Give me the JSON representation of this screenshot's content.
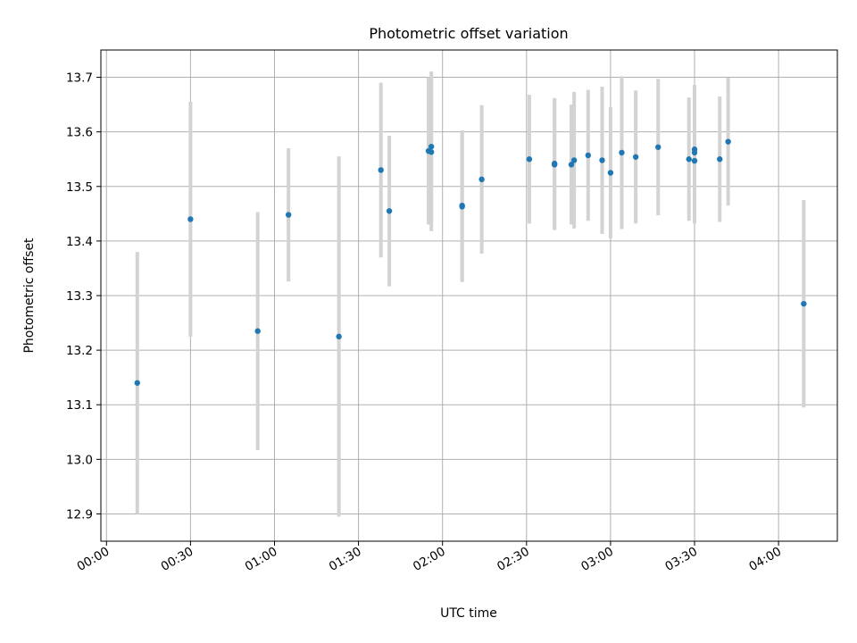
{
  "chart_data": {
    "type": "scatter",
    "title": "Photometric offset variation",
    "xlabel": "UTC time",
    "ylabel": "Photometric offset",
    "grid": true,
    "x_unit": "UTC time (HH:MM)",
    "xlim": [
      "23:58",
      "04:21"
    ],
    "ylim": [
      12.85,
      13.75
    ],
    "x_ticks": [
      "00:00",
      "00:30",
      "01:00",
      "01:30",
      "02:00",
      "02:30",
      "03:00",
      "03:30",
      "04:00"
    ],
    "y_ticks": [
      "12.9",
      "13.0",
      "13.1",
      "13.2",
      "13.3",
      "13.4",
      "13.5",
      "13.6",
      "13.7"
    ],
    "colors": {
      "points": "#1f77b4",
      "error_bars": "#d3d3d3",
      "grid": "#b0b0b0"
    },
    "series": [
      {
        "points": [
          {
            "x": "00:11",
            "y": 13.14,
            "err": 0.24
          },
          {
            "x": "00:30",
            "y": 13.44,
            "err": 0.215
          },
          {
            "x": "00:54",
            "y": 13.235,
            "err": 0.218
          },
          {
            "x": "01:05",
            "y": 13.448,
            "err": 0.122
          },
          {
            "x": "01:23",
            "y": 13.225,
            "err": 0.33
          },
          {
            "x": "01:38",
            "y": 13.53,
            "err": 0.16
          },
          {
            "x": "01:41",
            "y": 13.455,
            "err": 0.138
          },
          {
            "x": "01:55",
            "y": 13.565,
            "err": 0.135
          },
          {
            "x": "01:56",
            "y": 13.563,
            "err": 0.145
          },
          {
            "x": "01:56",
            "y": 13.573,
            "err": 0.138
          },
          {
            "x": "02:07",
            "y": 13.463,
            "err": 0.138
          },
          {
            "x": "02:07",
            "y": 13.465,
            "err": 0.138
          },
          {
            "x": "02:14",
            "y": 13.513,
            "err": 0.136
          },
          {
            "x": "02:31",
            "y": 13.55,
            "err": 0.118
          },
          {
            "x": "02:40",
            "y": 13.542,
            "err": 0.12
          },
          {
            "x": "02:40",
            "y": 13.54,
            "err": 0.12
          },
          {
            "x": "02:46",
            "y": 13.54,
            "err": 0.11
          },
          {
            "x": "02:47",
            "y": 13.548,
            "err": 0.125
          },
          {
            "x": "02:52",
            "y": 13.557,
            "err": 0.12
          },
          {
            "x": "02:57",
            "y": 13.548,
            "err": 0.135
          },
          {
            "x": "03:00",
            "y": 13.525,
            "err": 0.12
          },
          {
            "x": "03:04",
            "y": 13.562,
            "err": 0.14
          },
          {
            "x": "03:09",
            "y": 13.554,
            "err": 0.122
          },
          {
            "x": "03:17",
            "y": 13.572,
            "err": 0.125
          },
          {
            "x": "03:28",
            "y": 13.55,
            "err": 0.113
          },
          {
            "x": "03:30",
            "y": 13.568,
            "err": 0.118
          },
          {
            "x": "03:30",
            "y": 13.562,
            "err": 0.12
          },
          {
            "x": "03:30",
            "y": 13.547,
            "err": 0.115
          },
          {
            "x": "03:39",
            "y": 13.55,
            "err": 0.115
          },
          {
            "x": "03:42",
            "y": 13.582,
            "err": 0.117
          },
          {
            "x": "04:09",
            "y": 13.285,
            "err": 0.19
          }
        ]
      }
    ]
  }
}
